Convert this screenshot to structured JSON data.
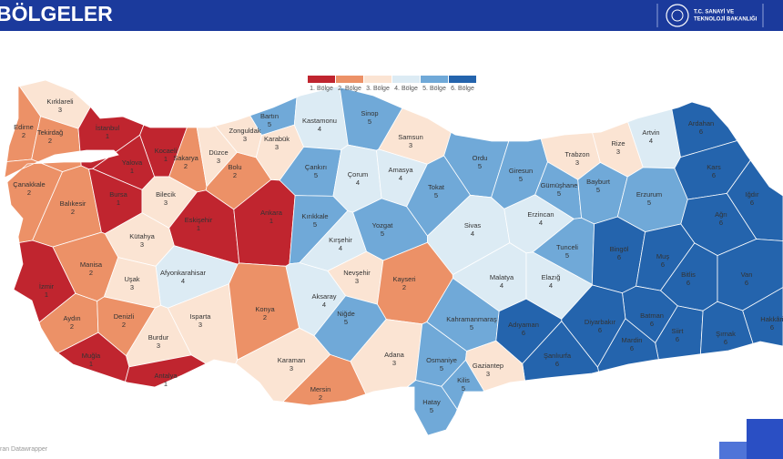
{
  "header": {
    "title": "BÖLGELER",
    "ministry_lines": [
      "T.C. SANAYİ VE",
      "TEKNOLOJİ BAKANLIĞI"
    ]
  },
  "legend": [
    {
      "label": "1. Bölge",
      "color": "#c0252f"
    },
    {
      "label": "2. Bölge",
      "color": "#ec9167"
    },
    {
      "label": "3. Bölge",
      "color": "#fbe4d3"
    },
    {
      "label": "4. Bölge",
      "color": "#dcebf4"
    },
    {
      "label": "5. Bölge",
      "color": "#70a9d8"
    },
    {
      "label": "6. Bölge",
      "color": "#2464ad"
    }
  ],
  "provinces": [
    {
      "name": "Kırklareli",
      "region": 3
    },
    {
      "name": "Edirne",
      "region": 2
    },
    {
      "name": "Tekirdağ",
      "region": 2
    },
    {
      "name": "İstanbul",
      "region": 1
    },
    {
      "name": "Kocaeli",
      "region": 1
    },
    {
      "name": "Yalova",
      "region": 1
    },
    {
      "name": "Sakarya",
      "region": 2
    },
    {
      "name": "Düzce",
      "region": 3
    },
    {
      "name": "Bolu",
      "region": 2
    },
    {
      "name": "Zonguldak",
      "region": 3
    },
    {
      "name": "Bartın",
      "region": 5
    },
    {
      "name": "Karabük",
      "region": 3
    },
    {
      "name": "Kastamonu",
      "region": 4
    },
    {
      "name": "Sinop",
      "region": 5
    },
    {
      "name": "Samsun",
      "region": 3
    },
    {
      "name": "Çankırı",
      "region": 5
    },
    {
      "name": "Çorum",
      "region": 4
    },
    {
      "name": "Amasya",
      "region": 4
    },
    {
      "name": "Ordu",
      "region": 5
    },
    {
      "name": "Giresun",
      "region": 5
    },
    {
      "name": "Trabzon",
      "region": 3
    },
    {
      "name": "Rize",
      "region": 3
    },
    {
      "name": "Artvin",
      "region": 4
    },
    {
      "name": "Ardahan",
      "region": 6
    },
    {
      "name": "Kars",
      "region": 6
    },
    {
      "name": "Iğdır",
      "region": 6
    },
    {
      "name": "Gümüşhane",
      "region": 5
    },
    {
      "name": "Bayburt",
      "region": 5
    },
    {
      "name": "Erzurum",
      "region": 5
    },
    {
      "name": "Tokat",
      "region": 5
    },
    {
      "name": "Çanakkale",
      "region": 2
    },
    {
      "name": "Balıkesir",
      "region": 2
    },
    {
      "name": "Bursa",
      "region": 1
    },
    {
      "name": "Bilecik",
      "region": 3
    },
    {
      "name": "Eskişehir",
      "region": 1
    },
    {
      "name": "Ankara",
      "region": 1
    },
    {
      "name": "Kırıkkale",
      "region": 5
    },
    {
      "name": "Kırşehir",
      "region": 4
    },
    {
      "name": "Yozgat",
      "region": 5
    },
    {
      "name": "Sivas",
      "region": 4
    },
    {
      "name": "Erzincan",
      "region": 4
    },
    {
      "name": "Ağrı",
      "region": 6
    },
    {
      "name": "Kütahya",
      "region": 3
    },
    {
      "name": "Manisa",
      "region": 2
    },
    {
      "name": "Afyonkarahisar",
      "region": 4
    },
    {
      "name": "Uşak",
      "region": 3
    },
    {
      "name": "Nevşehir",
      "region": 3
    },
    {
      "name": "Kayseri",
      "region": 2
    },
    {
      "name": "Tunceli",
      "region": 5
    },
    {
      "name": "Bingöl",
      "region": 6
    },
    {
      "name": "Muş",
      "region": 6
    },
    {
      "name": "Bitlis",
      "region": 6
    },
    {
      "name": "Van",
      "region": 6
    },
    {
      "name": "Malatya",
      "region": 4
    },
    {
      "name": "Elazığ",
      "region": 4
    },
    {
      "name": "İzmir",
      "region": 1
    },
    {
      "name": "Aksaray",
      "region": 4
    },
    {
      "name": "Niğde",
      "region": 5
    },
    {
      "name": "Batman",
      "region": 6
    },
    {
      "name": "Siirt",
      "region": 6
    },
    {
      "name": "Diyarbakır",
      "region": 6
    },
    {
      "name": "Hakkâri",
      "region": 6
    },
    {
      "name": "Aydın",
      "region": 2
    },
    {
      "name": "Denizli",
      "region": 2
    },
    {
      "name": "Isparta",
      "region": 3
    },
    {
      "name": "Konya",
      "region": 2
    },
    {
      "name": "Burdur",
      "region": 3
    },
    {
      "name": "Kahramanmaraş",
      "region": 5
    },
    {
      "name": "Adıyaman",
      "region": 6
    },
    {
      "name": "Şırnak",
      "region": 6
    },
    {
      "name": "Mardin",
      "region": 6
    },
    {
      "name": "Şanlıurfa",
      "region": 6
    },
    {
      "name": "Muğla",
      "region": 1
    },
    {
      "name": "Antalya",
      "region": 1
    },
    {
      "name": "Karaman",
      "region": 3
    },
    {
      "name": "Adana",
      "region": 3
    },
    {
      "name": "Osmaniye",
      "region": 5
    },
    {
      "name": "Gaziantep",
      "region": 3
    },
    {
      "name": "Kilis",
      "region": 5
    },
    {
      "name": "Mersin",
      "region": 2
    },
    {
      "name": "Hatay",
      "region": 5
    }
  ],
  "credit": "ran Datawrapper"
}
